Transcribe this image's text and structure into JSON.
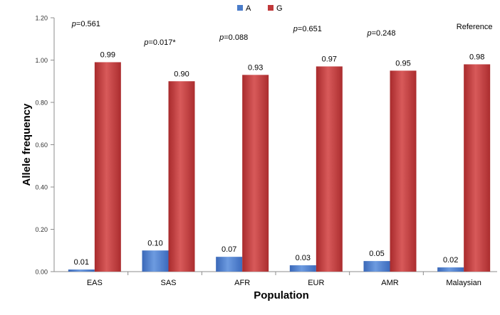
{
  "chart_data": {
    "type": "bar",
    "title": "",
    "xlabel": "Population",
    "ylabel": "Allele frequency",
    "ylim": [
      0,
      1.2
    ],
    "yticks": [
      "0.00",
      "0.20",
      "0.40",
      "0.60",
      "0.80",
      "1.00",
      "1.20"
    ],
    "categories": [
      "EAS",
      "SAS",
      "AFR",
      "EUR",
      "AMR",
      "Malaysian"
    ],
    "series": [
      {
        "name": "A",
        "color": "#4a7cc9",
        "values": [
          0.01,
          0.1,
          0.07,
          0.03,
          0.05,
          0.02
        ],
        "labels": [
          "0.01",
          "0.10",
          "0.07",
          "0.03",
          "0.05",
          "0.02"
        ]
      },
      {
        "name": "G",
        "color": "#c0383a",
        "values": [
          0.99,
          0.9,
          0.93,
          0.97,
          0.95,
          0.98
        ],
        "labels": [
          "0.99",
          "0.90",
          "0.93",
          "0.97",
          "0.95",
          "0.98"
        ]
      }
    ],
    "annotations": [
      {
        "prefix": "p",
        "text": "=0.561"
      },
      {
        "prefix": "p",
        "text": "=0.017*"
      },
      {
        "prefix": "p",
        "text": "=0.088"
      },
      {
        "prefix": "p",
        "text": "=0.651"
      },
      {
        "prefix": "p",
        "text": "=0.248"
      },
      {
        "prefix": "",
        "text": "Reference"
      }
    ],
    "legend_position": "top-center",
    "grid": false
  }
}
